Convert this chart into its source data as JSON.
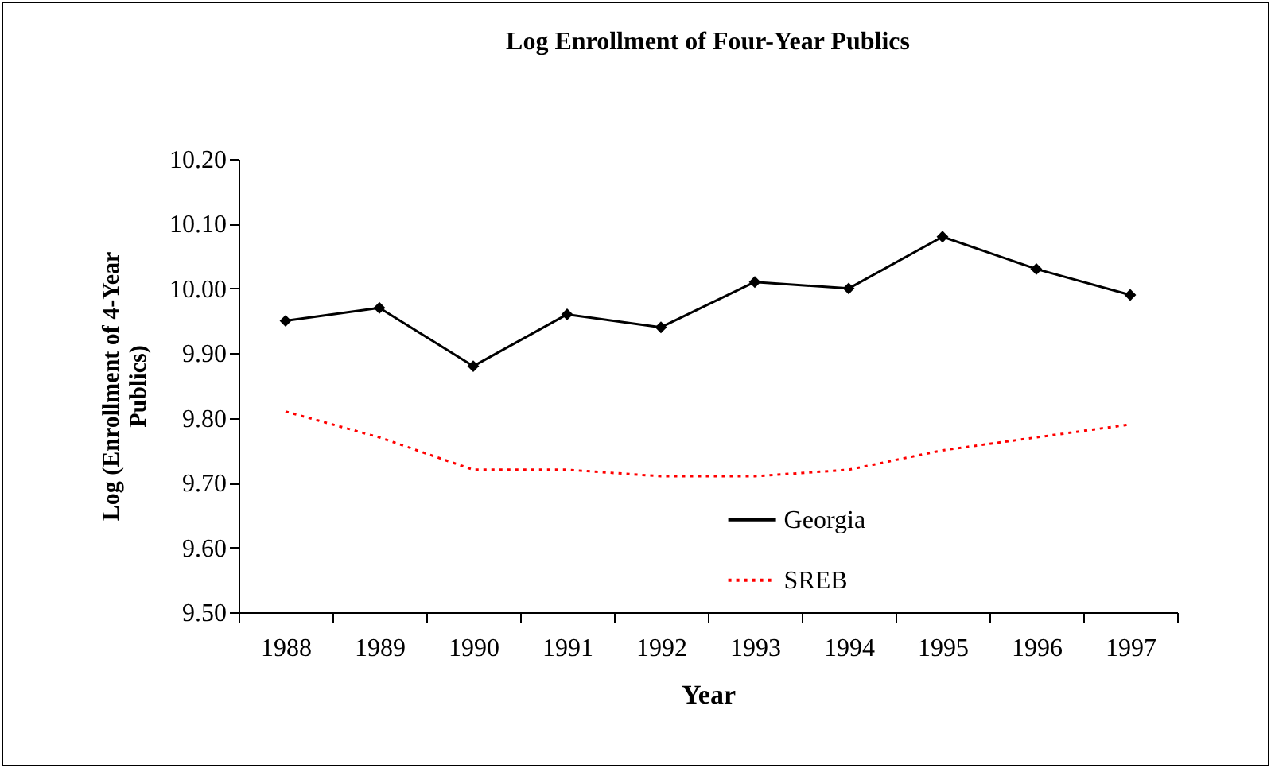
{
  "chart_data": {
    "type": "line",
    "title": "Log Enrollment of Four-Year Publics",
    "xlabel": "Year",
    "ylabel": "Log (Enrollment of 4-Year Publics)",
    "categories": [
      "1988",
      "1989",
      "1990",
      "1991",
      "1992",
      "1993",
      "1994",
      "1995",
      "1996",
      "1997"
    ],
    "series": [
      {
        "name": "Georgia",
        "color": "#000000",
        "marker": "diamond",
        "line_style": "solid",
        "values": [
          9.95,
          9.97,
          9.88,
          9.96,
          9.94,
          10.01,
          10.0,
          10.08,
          10.03,
          9.99
        ]
      },
      {
        "name": "SREB",
        "color": "#ff0000",
        "marker": "none",
        "line_style": "dotted",
        "values": [
          9.81,
          9.77,
          9.72,
          9.72,
          9.71,
          9.71,
          9.72,
          9.75,
          9.77,
          9.79
        ]
      }
    ],
    "ylim": [
      9.5,
      10.2
    ],
    "yticks": [
      {
        "value": 9.5,
        "label": "9.50"
      },
      {
        "value": 9.6,
        "label": "9.60"
      },
      {
        "value": 9.7,
        "label": "9.70"
      },
      {
        "value": 9.8,
        "label": "9.80"
      },
      {
        "value": 9.9,
        "label": "9.90"
      },
      {
        "value": 10.0,
        "label": "10.00"
      },
      {
        "value": 10.1,
        "label": "10.10"
      },
      {
        "value": 10.2,
        "label": "10.20"
      }
    ],
    "grid": false,
    "legend": "bottom"
  }
}
